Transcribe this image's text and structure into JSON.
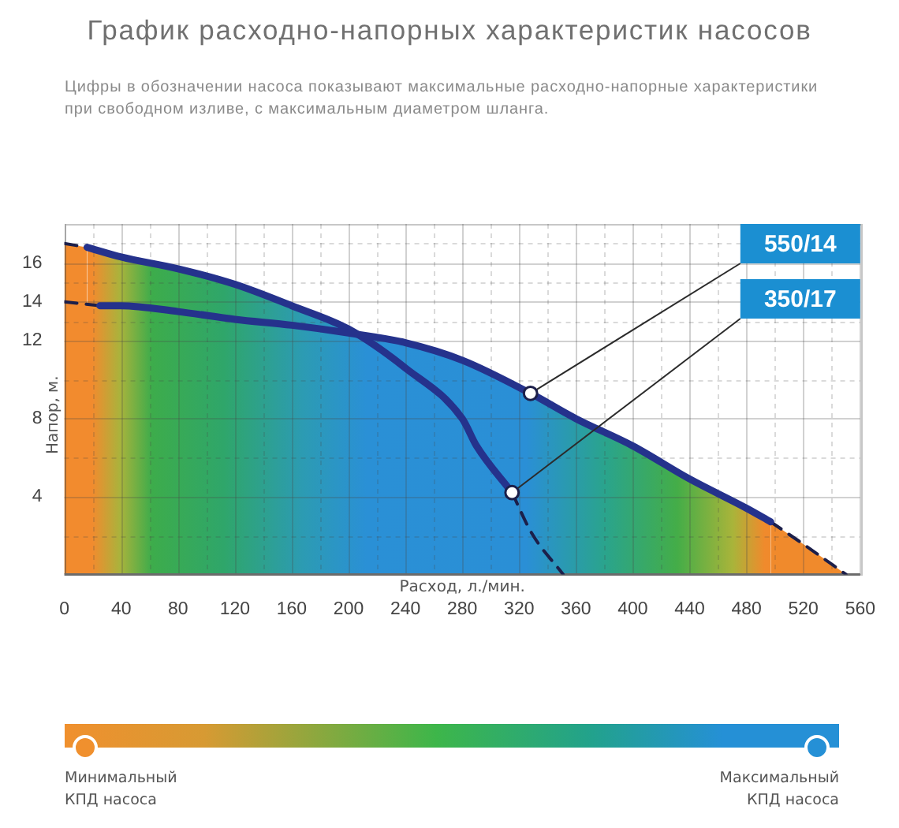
{
  "chart_data": {
    "type": "area",
    "title": "График расходно-напорных характеристик насосов",
    "subtitle": "Цифры в обозначении насоса показывают максимальные расходно-напорные характеристики при свободном изливе, с максимальным диаметром шланга.",
    "xlabel": "Расход, л./мин.",
    "ylabel": "Напор, м.",
    "xlim": [
      0,
      560
    ],
    "xticks": [
      0,
      {
        "value": 20,
        "label": null
      },
      40,
      {
        "value": 60,
        "label": null
      },
      80,
      {
        "value": 100,
        "label": null
      },
      120,
      {
        "value": 140,
        "label": null
      },
      160,
      {
        "value": 180,
        "label": null
      },
      200,
      {
        "value": 220,
        "label": null
      },
      240,
      {
        "value": 260,
        "label": null
      },
      280,
      {
        "value": 300,
        "label": null
      },
      320,
      {
        "value": 340,
        "label": null
      },
      360,
      {
        "value": 380,
        "label": null
      },
      400,
      {
        "value": 420,
        "label": null
      },
      440,
      {
        "value": 460,
        "label": null
      },
      480,
      {
        "value": 500,
        "label": null
      },
      520,
      {
        "value": 540,
        "label": null
      },
      560
    ],
    "ylim": [
      0,
      18
    ],
    "yticks": [
      {
        "value": 2,
        "label": null
      },
      4,
      {
        "value": 6,
        "label": null
      },
      8,
      {
        "value": 10,
        "label": null
      },
      12,
      {
        "value": 13,
        "label": null
      },
      14,
      {
        "value": 15,
        "label": null
      },
      16,
      {
        "value": 17,
        "label": null
      }
    ],
    "grid": true,
    "legend": false,
    "series": [
      {
        "color": "#25328c",
        "x": [
          25,
          40,
          80,
          120,
          160,
          200,
          240,
          280,
          328,
          360,
          400,
          440,
          480,
          497
        ],
        "values": [
          13.8,
          13.8,
          13.5,
          13.1,
          12.8,
          12.4,
          11.9,
          11.0,
          9.3,
          8.0,
          6.6,
          4.9,
          3.4,
          2.7
        ]
      },
      {
        "color": "#25328c",
        "x": [
          16,
          40,
          80,
          120,
          160,
          200,
          240,
          280,
          290,
          315
        ],
        "values": [
          16.8,
          16.3,
          15.7,
          14.9,
          13.8,
          12.6,
          10.6,
          8.0,
          6.6,
          4.2
        ]
      },
      {
        "color": "#1c1f4a",
        "line_style": "dashed",
        "x": [
          0,
          25
        ],
        "values": [
          14,
          13.8
        ]
      },
      {
        "color": "#1c1f4a",
        "line_style": "dashed",
        "x": [
          0,
          16
        ],
        "values": [
          17,
          16.8
        ]
      },
      {
        "color": "#1c1f4a",
        "line_style": "dashed",
        "x": [
          497,
          523,
          550
        ],
        "values": [
          2.7,
          1.4,
          0
        ]
      },
      {
        "type": "line",
        "color": "#1c1f4a",
        "line_style": "dashed",
        "x": [
          315,
          329,
          351
        ],
        "values": [
          4.2,
          2.1,
          0
        ]
      }
    ],
    "annotations": [
      {
        "text": "550/14",
        "x": 328,
        "y": 9.3
      },
      {
        "text": "350/17",
        "x": 315,
        "y": 4.2
      },
      "Минимальный КПД насоса",
      "Максимальный КПД насоса"
    ]
  }
}
